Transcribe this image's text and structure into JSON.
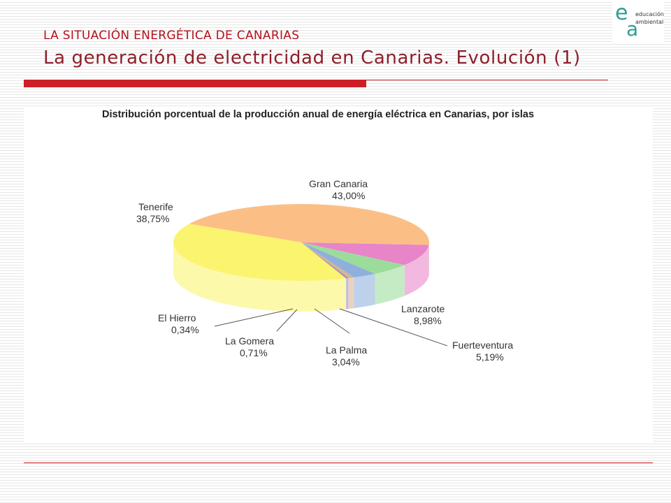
{
  "header": {
    "supertitle": "LA SITUACIÓN ENERGÉTICA DE CANARIAS",
    "title": "La generación de electricidad en Canarias. Evolución (1)"
  },
  "logo": {
    "line1": "educación",
    "line2": "ambiental",
    "letter_e": "e",
    "letter_a": "a"
  },
  "colors": {
    "accent": "#cc1f26",
    "title": "#8d1f2a",
    "logo": "#2e9e8f"
  },
  "chart_data": {
    "type": "pie",
    "title": "Distribución porcentual de la producción anual de energía eléctrica en Canarias, por islas",
    "slices": [
      {
        "name": "Gran Canaria",
        "value": 43.0,
        "label": "43,00%",
        "color": "#fbbf86"
      },
      {
        "name": "Lanzarote",
        "value": 8.98,
        "label": "8,98%",
        "color": "#e884c8"
      },
      {
        "name": "Fuerteventura",
        "value": 5.19,
        "label": "5,19%",
        "color": "#9bdc9b"
      },
      {
        "name": "La Palma",
        "value": 3.04,
        "label": "3,04%",
        "color": "#8fb0dd"
      },
      {
        "name": "La Gomera",
        "value": 0.71,
        "label": "0,71%",
        "color": "#d9b48a"
      },
      {
        "name": "El Hierro",
        "value": 0.34,
        "label": "0,34%",
        "color": "#9b8fc4"
      },
      {
        "name": "Tenerife",
        "value": 38.75,
        "label": "38,75%",
        "color": "#fbf46e"
      }
    ]
  }
}
